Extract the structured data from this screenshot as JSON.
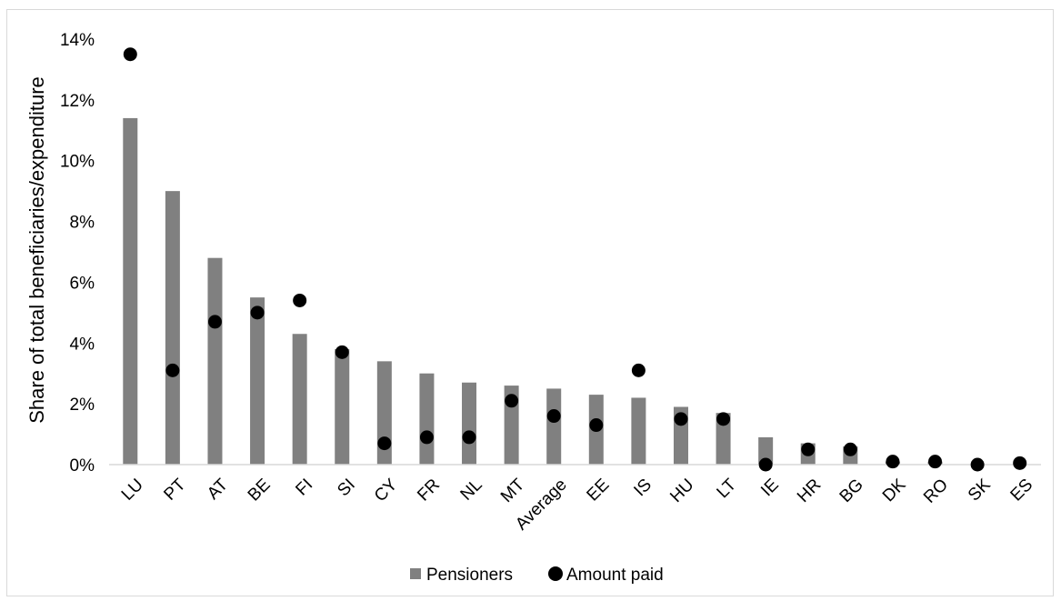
{
  "chart_data": {
    "type": "bar",
    "title": "",
    "xlabel": "",
    "ylabel": "Share of total beneficiaries/expenditure",
    "ylim": [
      0,
      14
    ],
    "yticks": [
      0,
      2,
      4,
      6,
      8,
      10,
      12,
      14
    ],
    "ytick_labels": [
      "0%",
      "2%",
      "4%",
      "6%",
      "8%",
      "10%",
      "12%",
      "14%"
    ],
    "grid": false,
    "legend_position": "bottom",
    "categories": [
      "LU",
      "PT",
      "AT",
      "BE",
      "FI",
      "SI",
      "CY",
      "FR",
      "NL",
      "MT",
      "Average",
      "EE",
      "IS",
      "HU",
      "LT",
      "IE",
      "HR",
      "BG",
      "DK",
      "RO",
      "SK",
      "ES"
    ],
    "series": [
      {
        "name": "Pensioners",
        "kind": "bar",
        "color": "#808080",
        "values": [
          11.4,
          9.0,
          6.8,
          5.5,
          4.3,
          3.8,
          3.4,
          3.0,
          2.7,
          2.6,
          2.5,
          2.3,
          2.2,
          1.9,
          1.7,
          0.9,
          0.7,
          0.6,
          0.1,
          0.1,
          0.0,
          0.0
        ]
      },
      {
        "name": "Amount paid",
        "kind": "marker",
        "color": "#000000",
        "values": [
          13.5,
          3.1,
          4.7,
          5.0,
          5.4,
          3.7,
          0.7,
          0.9,
          0.9,
          2.1,
          1.6,
          1.3,
          3.1,
          1.5,
          1.5,
          0.0,
          0.5,
          0.5,
          0.1,
          0.1,
          0.0,
          0.05
        ]
      }
    ]
  }
}
